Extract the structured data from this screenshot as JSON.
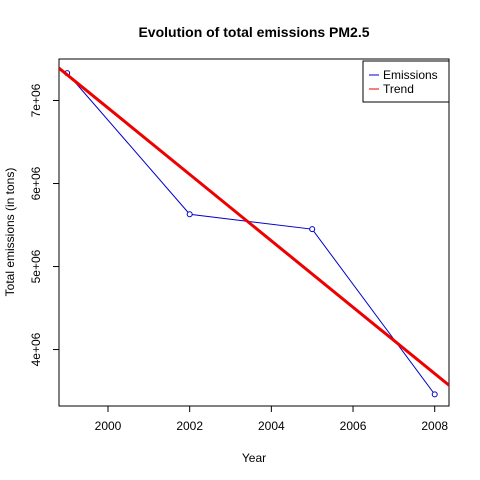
{
  "chart_data": {
    "type": "line",
    "title": "Evolution of total emissions PM2.5",
    "xlabel": "Year",
    "ylabel": "Total emissions (in tons)",
    "xlim": [
      1998.8,
      2008.35
    ],
    "ylim": [
      3320000,
      7500000
    ],
    "x_ticks": [
      2000,
      2002,
      2004,
      2006,
      2008
    ],
    "x_tick_labels": [
      "2000",
      "2002",
      "2004",
      "2006",
      "2008"
    ],
    "y_ticks": [
      4000000,
      5000000,
      6000000,
      7000000
    ],
    "y_tick_labels": [
      "4e+06",
      "5e+06",
      "6e+06",
      "7e+06"
    ],
    "grid": false,
    "legend_position": "top-right",
    "series": [
      {
        "name": "Emissions",
        "color": "#0000cc",
        "style": "line-with-points",
        "x": [
          1999,
          2002,
          2005,
          2008
        ],
        "y": [
          7330000,
          5630000,
          5450000,
          3460000
        ]
      },
      {
        "name": "Trend",
        "color": "#ee0000",
        "style": "thick-line",
        "x": [
          1998.8,
          2008.35
        ],
        "y": [
          7390000,
          3570000
        ]
      }
    ]
  }
}
